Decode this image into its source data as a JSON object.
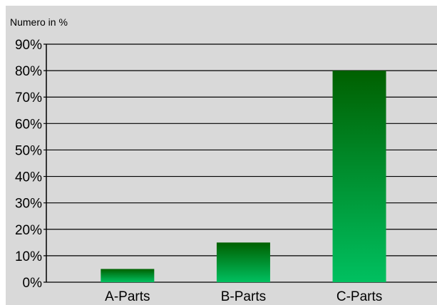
{
  "chart_data": {
    "type": "bar",
    "ylabel": "Numero in  %",
    "categories": [
      "A-Parts",
      "B-Parts",
      "C-Parts"
    ],
    "values": [
      5,
      15,
      80
    ],
    "ylim": [
      0,
      90
    ],
    "yticks": [
      0,
      10,
      20,
      30,
      40,
      50,
      60,
      70,
      80,
      90
    ],
    "ytick_suffix": "%",
    "grid": true,
    "legend": "none",
    "colors": {
      "background": "#d9d9d9",
      "bar_top": "#006000",
      "bar_bottom": "#00c060",
      "grid": "#000000",
      "text": "#000000"
    }
  }
}
